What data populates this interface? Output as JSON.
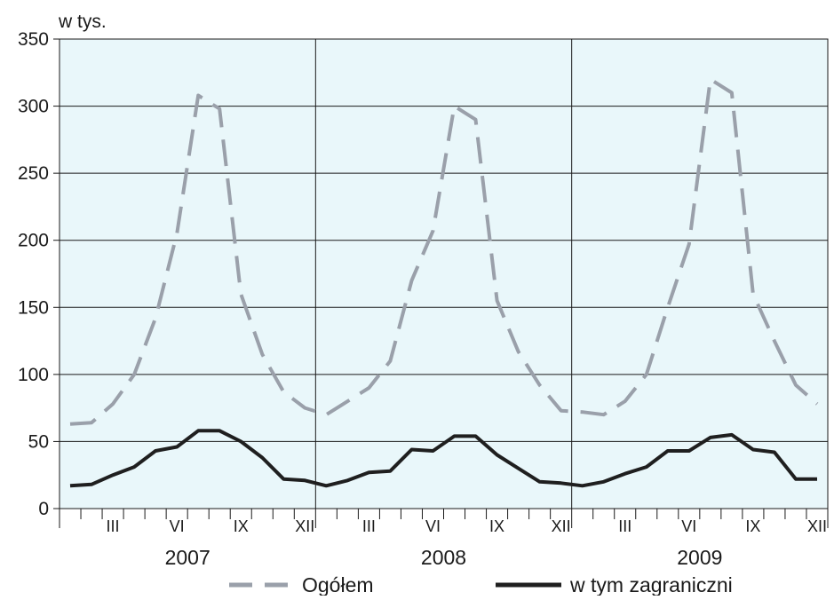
{
  "chart_data": {
    "type": "line",
    "unit_label": "w  tys.",
    "ylim": [
      0,
      350
    ],
    "yticks": [
      0,
      50,
      100,
      150,
      200,
      250,
      300,
      350
    ],
    "grid": true,
    "background_color": "#e9f7fa",
    "month_labels": [
      "III",
      "VI",
      "IX",
      "XII"
    ],
    "years": [
      "2007",
      "2008",
      "2009"
    ],
    "legend_position": "bottom",
    "series": [
      {
        "name": "Ogółem",
        "style": "dashed",
        "color": "#9aa0aa",
        "values": [
          63,
          64,
          78,
          100,
          142,
          205,
          308,
          298,
          160,
          115,
          87,
          75,
          70,
          80,
          90,
          110,
          170,
          207,
          300,
          290,
          155,
          117,
          92,
          73,
          72,
          70,
          80,
          100,
          150,
          197,
          320,
          310,
          160,
          125,
          92,
          78
        ]
      },
      {
        "name": "w tym zagraniczni",
        "style": "solid",
        "color": "#1f1f1f",
        "values": [
          17,
          18,
          25,
          31,
          43,
          46,
          58,
          58,
          50,
          38,
          22,
          21,
          17,
          21,
          27,
          28,
          44,
          43,
          54,
          54,
          40,
          30,
          20,
          19,
          17,
          20,
          26,
          31,
          43,
          43,
          53,
          55,
          44,
          42,
          22,
          22
        ]
      }
    ]
  }
}
